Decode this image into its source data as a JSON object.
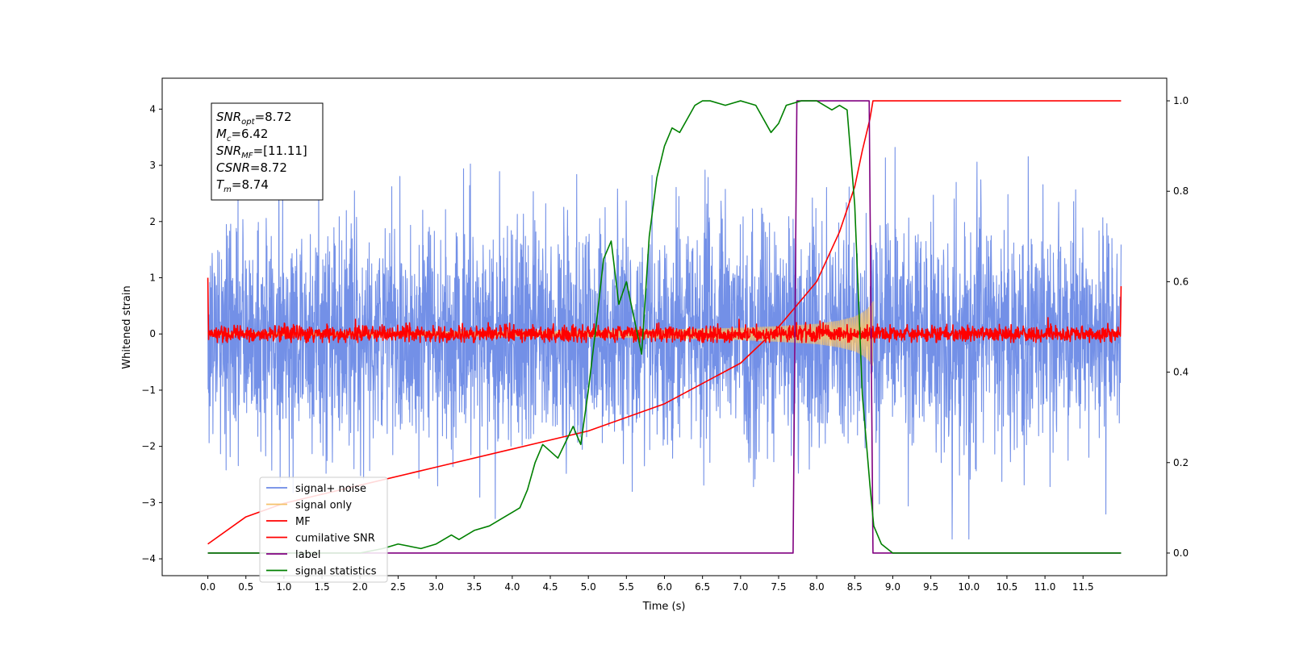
{
  "chart_data": {
    "type": "line",
    "title": "",
    "xlabel": "Time (s)",
    "ylabel": "Whitened strain",
    "ylabel_right": "",
    "xlim": [
      -0.6,
      12.6
    ],
    "ylim": [
      -4.3,
      4.55
    ],
    "ylim_right": [
      -0.05,
      1.05
    ],
    "x_ticks": [
      0.0,
      0.5,
      1.0,
      1.5,
      2.0,
      2.5,
      3.0,
      3.5,
      4.0,
      4.5,
      5.0,
      5.5,
      6.0,
      6.5,
      7.0,
      7.5,
      8.0,
      8.5,
      9.0,
      9.5,
      10.0,
      10.5,
      11.0,
      11.5
    ],
    "x_tick_labels": [
      "0.0",
      "0.5",
      "1.0",
      "1.5",
      "2.0",
      "2.5",
      "3.0",
      "3.5",
      "4.0",
      "4.5",
      "5.0",
      "5.5",
      "6.0",
      "6.5",
      "7.0",
      "7.5",
      "8.0",
      "8.5",
      "9.0",
      "9.5",
      "10.0",
      "10.5",
      "11.0",
      "11.5"
    ],
    "y_ticks": [
      -4,
      -3,
      -2,
      -1,
      0,
      1,
      2,
      3,
      4
    ],
    "y_tick_labels": [
      "−4",
      "−3",
      "−2",
      "−1",
      "0",
      "1",
      "2",
      "3",
      "4"
    ],
    "y_ticks_right": [
      0.0,
      0.2,
      0.4,
      0.6,
      0.8,
      1.0
    ],
    "y_tick_labels_right": [
      "0.0",
      "0.2",
      "0.4",
      "0.6",
      "0.8",
      "1.0"
    ],
    "grid": false,
    "legend_position": "bottom-left",
    "duration": 12.0,
    "series": [
      {
        "name": "signal+ noise",
        "color": "#6b8ae6",
        "axis": "left",
        "kind": "noise",
        "x_range": [
          0.0,
          12.0
        ],
        "std": 1.0,
        "range": [
          -3.65,
          4.15
        ]
      },
      {
        "name": "signal only",
        "color": "#f5c26b",
        "axis": "left",
        "kind": "chirp-envelope",
        "envelope": {
          "x": [
            0.0,
            4.0,
            5.0,
            6.0,
            7.0,
            7.5,
            8.0,
            8.3,
            8.5,
            8.6,
            8.65,
            8.7,
            8.72,
            8.74
          ],
          "amplitude": [
            0.03,
            0.05,
            0.06,
            0.08,
            0.11,
            0.14,
            0.18,
            0.24,
            0.31,
            0.38,
            0.43,
            0.5,
            0.55,
            0.58
          ]
        }
      },
      {
        "name": "MF",
        "color": "#ff0000",
        "axis": "left",
        "kind": "noise",
        "x_range": [
          0.0,
          12.0
        ],
        "std": 0.07,
        "range": [
          -0.15,
          0.33
        ],
        "edge_values": [
          1.0,
          0.85
        ]
      },
      {
        "name": "cumilative SNR",
        "color": "#ff0000",
        "axis": "right",
        "x": [
          0.0,
          0.5,
          1.0,
          2.0,
          3.0,
          4.0,
          5.0,
          6.0,
          7.0,
          7.5,
          8.0,
          8.3,
          8.5,
          8.6,
          8.7,
          8.74,
          8.75,
          12.0
        ],
        "y": [
          0.02,
          0.08,
          0.11,
          0.15,
          0.19,
          0.23,
          0.27,
          0.33,
          0.42,
          0.5,
          0.6,
          0.71,
          0.81,
          0.89,
          0.96,
          1.0,
          1.0,
          1.0
        ]
      },
      {
        "name": "label",
        "color": "#800080",
        "axis": "right",
        "x": [
          0.0,
          7.69,
          7.74,
          8.69,
          8.74,
          12.0
        ],
        "y": [
          0.0,
          0.0,
          1.0,
          1.0,
          0.0,
          0.0
        ]
      },
      {
        "name": "signal statistics",
        "color": "#008000",
        "axis": "right",
        "x": [
          0.0,
          1.0,
          2.0,
          2.3,
          2.5,
          2.8,
          3.0,
          3.2,
          3.3,
          3.5,
          3.7,
          3.9,
          4.1,
          4.2,
          4.3,
          4.4,
          4.6,
          4.8,
          4.9,
          5.0,
          5.1,
          5.2,
          5.3,
          5.4,
          5.5,
          5.7,
          5.8,
          5.9,
          6.0,
          6.1,
          6.2,
          6.3,
          6.4,
          6.5,
          6.6,
          6.8,
          7.0,
          7.2,
          7.4,
          7.5,
          7.6,
          7.8,
          8.0,
          8.1,
          8.2,
          8.3,
          8.4,
          8.5,
          8.6,
          8.7,
          8.75,
          8.85,
          9.0,
          10.0,
          11.0,
          12.0
        ],
        "y": [
          0.0,
          0.0,
          0.0,
          0.01,
          0.02,
          0.01,
          0.02,
          0.04,
          0.03,
          0.05,
          0.06,
          0.08,
          0.1,
          0.14,
          0.2,
          0.24,
          0.21,
          0.28,
          0.24,
          0.36,
          0.5,
          0.65,
          0.69,
          0.55,
          0.6,
          0.44,
          0.7,
          0.83,
          0.9,
          0.94,
          0.93,
          0.96,
          0.99,
          1.0,
          1.0,
          0.99,
          1.0,
          0.99,
          0.93,
          0.95,
          0.99,
          1.0,
          1.0,
          0.99,
          0.98,
          0.99,
          0.98,
          0.77,
          0.35,
          0.15,
          0.06,
          0.02,
          0.0,
          0.0,
          0.0,
          0.0
        ]
      }
    ],
    "annotations": [
      {
        "base": "SNR",
        "sub": "opt",
        "value": "=8.72"
      },
      {
        "base": "M",
        "sub": "c",
        "value": "=6.42"
      },
      {
        "base": "SNR",
        "sub": "MF",
        "value": "=[11.11]"
      },
      {
        "base": "CSNR",
        "sub": "",
        "value": "=8.72"
      },
      {
        "base": "T",
        "sub": "m",
        "value": "=8.74"
      }
    ]
  }
}
